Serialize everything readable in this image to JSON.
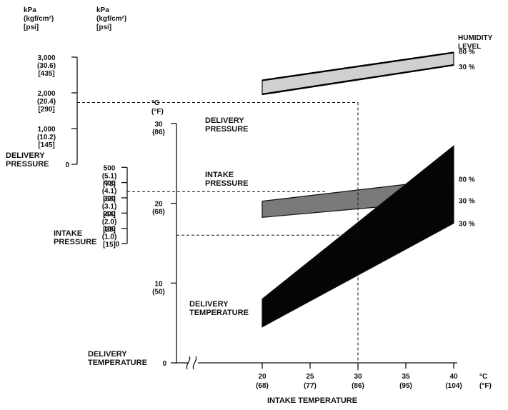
{
  "chart_data": {
    "type": "area",
    "title": "",
    "xlabel": "INTAKE TEMPERATURE",
    "x_unit": {
      "c": "°C",
      "f": "(°F)"
    },
    "x_ticks": [
      {
        "c": "20",
        "f": "(68)"
      },
      {
        "c": "25",
        "f": "(77)"
      },
      {
        "c": "30",
        "f": "(86)"
      },
      {
        "c": "35",
        "f": "(95)"
      },
      {
        "c": "40",
        "f": "(104)"
      }
    ],
    "xlim": [
      20,
      40
    ],
    "humidity_header": [
      "HUMIDITY",
      "LEVEL"
    ],
    "axes": {
      "delivery_pressure": {
        "title": "DELIVERY\nPRESSURE",
        "units": [
          "kPa",
          "(kgf/cm²)",
          "[psi]"
        ],
        "ticks": [
          {
            "kpa": 0,
            "lines": [
              "0"
            ]
          },
          {
            "kpa": 1000,
            "lines": [
              "1,000",
              "(10.2)",
              "[145]"
            ]
          },
          {
            "kpa": 2000,
            "lines": [
              "2,000",
              "(20.4)",
              "[290]"
            ]
          },
          {
            "kpa": 3000,
            "lines": [
              "3,000",
              "(30.6)",
              "[435]"
            ]
          }
        ]
      },
      "intake_pressure": {
        "title": "INTAKE\nPRESSURE",
        "units": [
          "kPa",
          "(kgf/cm²)",
          "[psi]"
        ],
        "ticks": [
          {
            "kpa": 0,
            "lines": [
              "0"
            ]
          },
          {
            "kpa": 100,
            "lines": [
              "100",
              "(1.0)",
              "[15]"
            ]
          },
          {
            "kpa": 200,
            "lines": [
              "200",
              "(2.0)",
              "[29]"
            ]
          },
          {
            "kpa": 300,
            "lines": [
              "300",
              "(3.1)",
              "[44]"
            ]
          },
          {
            "kpa": 400,
            "lines": [
              "400",
              "(4.1)",
              "[58]"
            ]
          },
          {
            "kpa": 500,
            "lines": [
              "500",
              "(5.1)",
              "[73]"
            ]
          }
        ]
      },
      "delivery_temperature": {
        "title": "DELIVERY\nTEMPERATURE",
        "units": [
          "°C",
          "(°F)"
        ],
        "ticks": [
          {
            "c": 0,
            "lines": [
              "0"
            ]
          },
          {
            "c": 10,
            "lines": [
              "10",
              "(50)"
            ]
          },
          {
            "c": 20,
            "lines": [
              "20",
              "(68)"
            ]
          },
          {
            "c": 30,
            "lines": [
              "30",
              "(86)"
            ]
          }
        ]
      }
    },
    "series": [
      {
        "name": "DELIVERY\nPRESSURE",
        "axis": "delivery_pressure",
        "color": "#d0d0d0",
        "x": [
          20,
          40
        ],
        "upper": [
          2350,
          3130
        ],
        "lower": [
          1960,
          2780
        ],
        "label_upper": "80 %",
        "label_lower": "30 %",
        "line_style": "upper-and-lower"
      },
      {
        "name": "INTAKE\nPRESSURE",
        "axis": "intake_pressure",
        "color": "#7a7a7a",
        "x": [
          20,
          40
        ],
        "upper": [
          278,
          425
        ],
        "lower": [
          172,
          284
        ],
        "label_upper": "80 %",
        "label_lower": "30 %"
      },
      {
        "name": "DELIVERY\nTEMPERATURE",
        "axis": "delivery_temperature",
        "color": "#050505",
        "x": [
          20,
          40
        ],
        "upper": [
          8.0,
          27.2
        ],
        "lower": [
          4.5,
          17.5
        ],
        "label_upper": "",
        "label_lower": "30 %"
      }
    ],
    "example_readings": {
      "intake_temperature_c": 30,
      "delivery_pressure_kpa": 1730,
      "intake_pressure_kpa": 340,
      "delivery_temperature_c": 16
    }
  }
}
